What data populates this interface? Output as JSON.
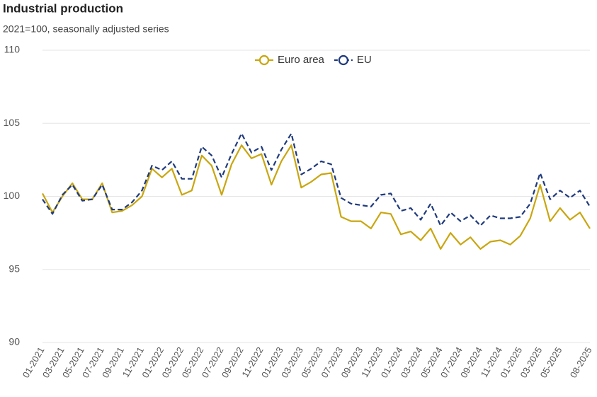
{
  "chart_data": {
    "type": "line",
    "title": "Industrial production",
    "subtitle": "2021=100, seasonally adjusted series",
    "categories": [
      "01-2021",
      null,
      "03-2021",
      null,
      "05-2021",
      null,
      "07-2021",
      null,
      "09-2021",
      null,
      "11-2021",
      null,
      "01-2022",
      null,
      "03-2022",
      null,
      "05-2022",
      null,
      "07-2022",
      null,
      "09-2022",
      null,
      "11-2022",
      null,
      "01-2023",
      null,
      "03-2023",
      null,
      "05-2023",
      null,
      "07-2023",
      null,
      "09-2023",
      null,
      "11-2023",
      null,
      "01-2024",
      null,
      "03-2024",
      null,
      "05-2024",
      null,
      "07-2024",
      null,
      "09-2024",
      null,
      "11-2024",
      null,
      "01-2025",
      null,
      "03-2025",
      null,
      "05-2025",
      null,
      null,
      "08-2025"
    ],
    "series": [
      {
        "name": "Euro area",
        "color": "#c9a60f",
        "dashed": false,
        "values": [
          100.2,
          98.9,
          100.0,
          100.9,
          99.8,
          99.8,
          100.9,
          98.9,
          99.0,
          99.4,
          100.0,
          101.9,
          101.3,
          101.9,
          100.1,
          100.4,
          102.8,
          102.1,
          100.1,
          102.2,
          103.5,
          102.6,
          102.9,
          100.8,
          102.4,
          103.5,
          100.6,
          101.0,
          101.5,
          101.6,
          98.6,
          98.3,
          98.3,
          97.8,
          98.9,
          98.8,
          97.4,
          97.6,
          97.0,
          97.8,
          96.4,
          97.5,
          96.7,
          97.2,
          96.4,
          96.9,
          97.0,
          96.7,
          97.3,
          98.5,
          100.8,
          98.3,
          99.2,
          98.4,
          98.9,
          97.8
        ]
      },
      {
        "name": "EU",
        "color": "#1f3a7d",
        "dashed": true,
        "values": [
          99.8,
          98.8,
          100.1,
          100.8,
          99.7,
          99.8,
          100.8,
          99.1,
          99.1,
          99.6,
          100.4,
          102.1,
          101.8,
          102.4,
          101.2,
          101.2,
          103.4,
          102.8,
          101.3,
          102.9,
          104.3,
          103.0,
          103.4,
          101.8,
          103.2,
          104.3,
          101.5,
          101.9,
          102.4,
          102.2,
          99.9,
          99.5,
          99.4,
          99.3,
          100.1,
          100.2,
          99.0,
          99.2,
          98.4,
          99.5,
          98.0,
          98.9,
          98.3,
          98.7,
          98.0,
          98.7,
          98.5,
          98.5,
          98.6,
          99.5,
          101.6,
          99.8,
          100.4,
          99.9,
          100.4,
          99.3
        ]
      }
    ],
    "ylim": [
      90,
      110
    ],
    "yticks": [
      90,
      95,
      100,
      105,
      110
    ],
    "grid": true,
    "legend": "top"
  }
}
